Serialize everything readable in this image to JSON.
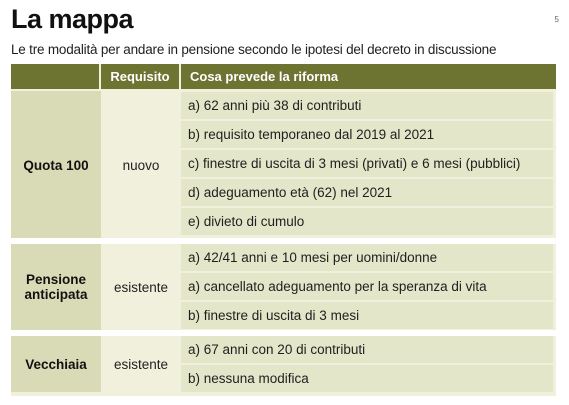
{
  "title": "La mappa",
  "page_number": "5",
  "subtitle": "Le tre modalità per andare in pensione secondo le ipotesi del decreto in discussione",
  "table": {
    "headers": [
      "",
      "Requisito",
      "Cosa prevede la riforma"
    ],
    "groups": [
      {
        "name": "Quota 100",
        "requisito": "nuovo",
        "items": [
          "a) 62 anni più 38 di contributi",
          "b) requisito temporaneo dal 2019 al 2021",
          "c) finestre di uscita di 3 mesi (privati) e 6 mesi (pubblici)",
          "d) adeguamento età (62) nel 2021",
          "e) divieto di cumulo"
        ]
      },
      {
        "name": "Pensione anticipata",
        "requisito": "esistente",
        "items": [
          "a) 42/41 anni e 10 mesi per uomini/donne",
          "a) cancellato adeguamento per la speranza di vita",
          "b) finestre di uscita di 3 mesi"
        ]
      },
      {
        "name": "Vecchiaia",
        "requisito": "esistente",
        "items": [
          "a) 67 anni con 20 di contributi",
          "b) nessuna modifica"
        ]
      }
    ]
  }
}
